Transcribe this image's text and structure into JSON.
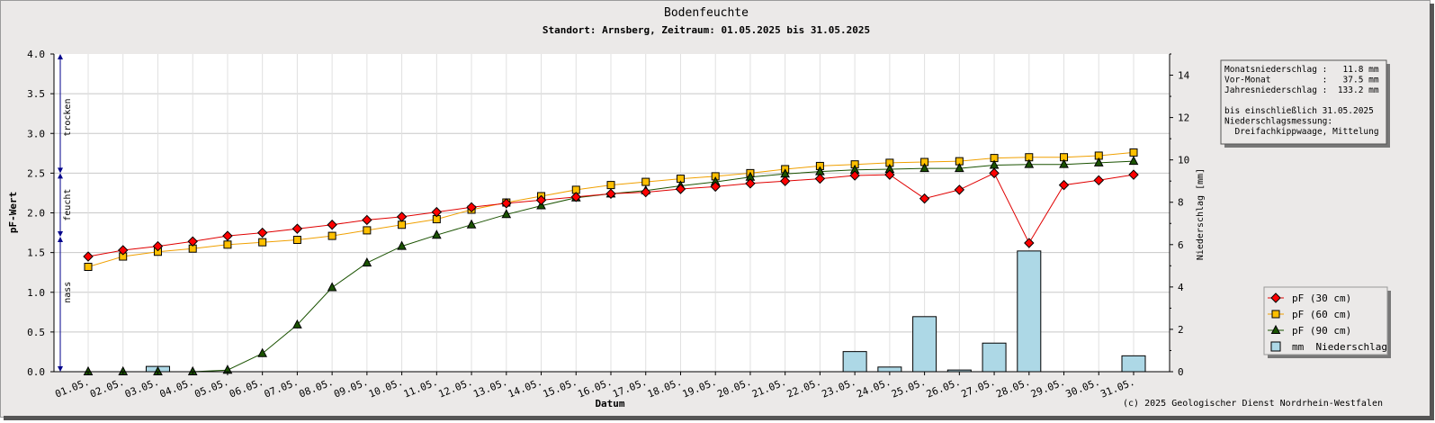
{
  "chart_data": {
    "type": "line",
    "title": "Bodenfeuchte",
    "subtitle": "Standort: Arnsberg, Zeitraum: 01.05.2025 bis 31.05.2025",
    "xlabel": "Datum",
    "ylabel": "pF-Wert",
    "y2label": "Niederschlag [mm]",
    "ylim": [
      0,
      4.0
    ],
    "y2lim": [
      0,
      15
    ],
    "yticks": [
      "0.0",
      "0.5",
      "1.0",
      "1.5",
      "2.0",
      "2.5",
      "3.0",
      "3.5",
      "4.0"
    ],
    "y2ticks": [
      "0",
      "2",
      "4",
      "6",
      "8",
      "10",
      "12",
      "14"
    ],
    "categories": [
      "01.05.",
      "02.05.",
      "03.05.",
      "04.05.",
      "05.05.",
      "06.05.",
      "07.05.",
      "08.05.",
      "09.05.",
      "10.05.",
      "11.05.",
      "12.05.",
      "13.05.",
      "14.05.",
      "15.05.",
      "16.05.",
      "17.05.",
      "18.05.",
      "19.05.",
      "20.05.",
      "21.05.",
      "22.05.",
      "23.05.",
      "24.05.",
      "25.05.",
      "26.05.",
      "27.05.",
      "28.05.",
      "29.05.",
      "30.05.",
      "31.05."
    ],
    "zones": [
      {
        "label": "trocken",
        "from": 2.5,
        "to": 4.0
      },
      {
        "label": "feucht",
        "from": 1.7,
        "to": 2.5
      },
      {
        "label": "nass",
        "from": 0.0,
        "to": 1.7
      }
    ],
    "series": [
      {
        "name": "pF (30 cm)",
        "color": "#e00000",
        "marker": "diamond",
        "values": [
          1.45,
          1.53,
          1.58,
          1.64,
          1.71,
          1.75,
          1.8,
          1.85,
          1.91,
          1.95,
          2.01,
          2.07,
          2.12,
          2.16,
          2.2,
          2.24,
          2.26,
          2.3,
          2.33,
          2.37,
          2.4,
          2.43,
          2.47,
          2.48,
          2.18,
          2.29,
          2.5,
          1.62,
          2.35,
          2.41,
          2.48
        ]
      },
      {
        "name": "pF (60 cm)",
        "color": "#f0a000",
        "marker": "square",
        "values": [
          1.32,
          1.45,
          1.51,
          1.55,
          1.6,
          1.63,
          1.66,
          1.71,
          1.78,
          1.85,
          1.92,
          2.04,
          2.13,
          2.21,
          2.29,
          2.35,
          2.39,
          2.43,
          2.46,
          2.5,
          2.55,
          2.59,
          2.61,
          2.63,
          2.64,
          2.65,
          2.69,
          2.7,
          2.7,
          2.72,
          2.76
        ]
      },
      {
        "name": "pF (90 cm)",
        "color": "#1a5200",
        "marker": "triangle",
        "values": [
          0.0,
          0.0,
          0.0,
          0.0,
          0.02,
          0.23,
          0.59,
          1.06,
          1.37,
          1.58,
          1.72,
          1.85,
          1.98,
          2.09,
          2.19,
          2.24,
          2.28,
          2.34,
          2.39,
          2.45,
          2.49,
          2.52,
          2.54,
          2.55,
          2.56,
          2.56,
          2.6,
          2.61,
          2.61,
          2.63,
          2.65
        ]
      },
      {
        "name": "mm  Niederschlag",
        "type": "bar",
        "axis": "right",
        "color": "#add8e6",
        "values": [
          0,
          0,
          0.25,
          0,
          0,
          0,
          0,
          0,
          0,
          0,
          0,
          0,
          0,
          0,
          0,
          0,
          0,
          0,
          0,
          0,
          0,
          0,
          0.95,
          0.22,
          2.6,
          0.08,
          1.35,
          5.7,
          0,
          0,
          0.75
        ]
      }
    ],
    "legend_position": "right",
    "info": {
      "lines": [
        "Monatsniederschlag :   11.8 mm",
        "Vor-Monat          :   37.5 mm",
        "Jahresniederschlag :  133.2 mm",
        "",
        "bis einschließlich 31.05.2025",
        "Niederschlagsmessung:",
        "  Dreifachkippwaage, Mittelung"
      ]
    },
    "copyright": "(c) 2025 Geologischer Dienst Nordrhein-Westfalen",
    "grid": true
  }
}
